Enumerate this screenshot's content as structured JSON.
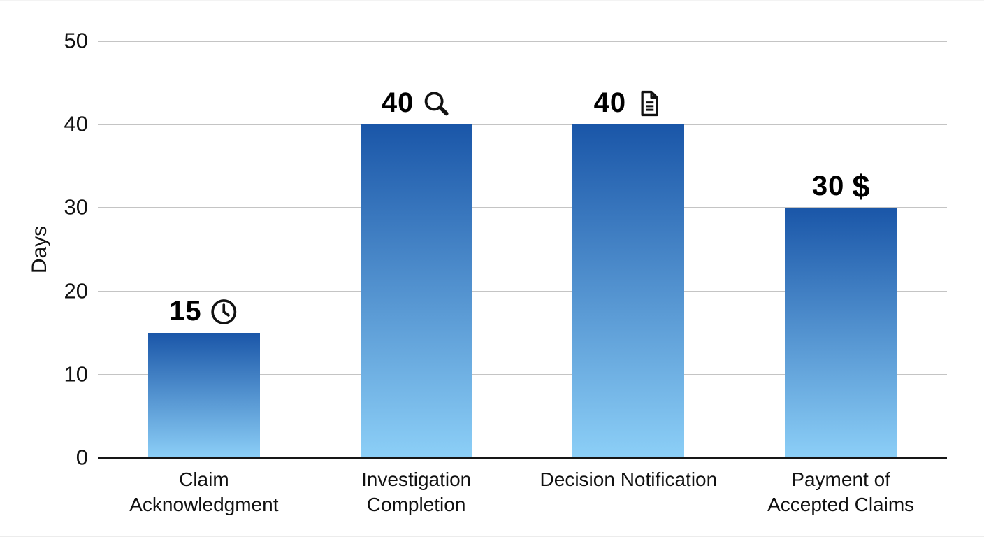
{
  "chart_data": {
    "type": "bar",
    "title": "",
    "xlabel": "",
    "ylabel": "Days",
    "ylim": [
      0,
      50
    ],
    "yticks": [
      0,
      10,
      20,
      30,
      40,
      50
    ],
    "grid": true,
    "legend": "none",
    "categories": [
      "Claim Acknowledgment",
      "Investigation Completion",
      "Decision Notification",
      "Payment of Accepted Claims"
    ],
    "values": [
      15,
      40,
      40,
      30
    ],
    "bars": [
      {
        "category": "Claim Acknowledgment",
        "value": 15,
        "value_label": "15",
        "icon": "clock-icon"
      },
      {
        "category": "Investigation Completion",
        "value": 40,
        "value_label": "40",
        "icon": "magnifier-icon"
      },
      {
        "category": "Decision Notification",
        "value": 40,
        "value_label": "40",
        "icon": "document-icon"
      },
      {
        "category": "Payment of Accepted Claims",
        "value": 30,
        "value_label": "30",
        "icon": "dollar-icon",
        "icon_glyph": "$"
      }
    ],
    "colors": {
      "bar_gradient_top": "#1a56a8",
      "bar_gradient_bottom": "#8ccff7",
      "gridline": "#c4c4c4",
      "axis_line": "#161616",
      "text": "#111111"
    }
  }
}
